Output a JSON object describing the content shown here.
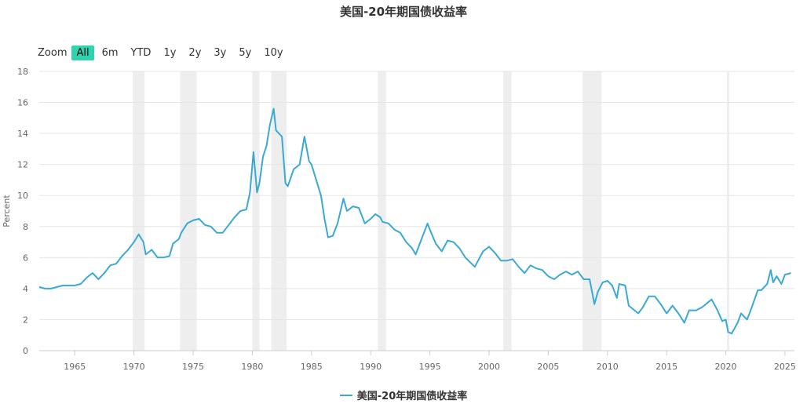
{
  "chart_data": {
    "type": "line",
    "title": "美国-20年期国债收益率",
    "ylabel": "Percent",
    "xlabel": "",
    "ylim": [
      0,
      18
    ],
    "xlim": [
      1962,
      2025.8
    ],
    "y_ticks": [
      "0",
      "2",
      "4",
      "6",
      "8",
      "10",
      "12",
      "14",
      "16",
      "18"
    ],
    "x_ticks": [
      "1965",
      "1970",
      "1975",
      "1980",
      "1985",
      "1990",
      "1995",
      "2000",
      "2005",
      "2010",
      "2015",
      "2020",
      "2025"
    ],
    "grid": true,
    "legend_position": "bottom-center",
    "line_color": "#3aa9d4",
    "recession_color": "#eeeeee",
    "recessions": [
      [
        1969.9,
        1970.9
      ],
      [
        1973.9,
        1975.3
      ],
      [
        1980.0,
        1980.6
      ],
      [
        1981.6,
        1982.9
      ],
      [
        1990.6,
        1991.3
      ],
      [
        2001.2,
        2001.9
      ],
      [
        2007.9,
        2009.5
      ],
      [
        2020.1,
        2020.3
      ]
    ],
    "series": [
      {
        "name": "美国-20年期国债收益率",
        "points": [
          [
            1962.0,
            4.1
          ],
          [
            1962.5,
            4.0
          ],
          [
            1963.0,
            4.0
          ],
          [
            1963.5,
            4.1
          ],
          [
            1964.0,
            4.2
          ],
          [
            1965.0,
            4.2
          ],
          [
            1965.5,
            4.3
          ],
          [
            1966.0,
            4.7
          ],
          [
            1966.5,
            5.0
          ],
          [
            1967.0,
            4.6
          ],
          [
            1967.5,
            5.0
          ],
          [
            1968.0,
            5.5
          ],
          [
            1968.5,
            5.6
          ],
          [
            1969.0,
            6.1
          ],
          [
            1969.5,
            6.5
          ],
          [
            1970.0,
            7.0
          ],
          [
            1970.4,
            7.5
          ],
          [
            1970.8,
            7.0
          ],
          [
            1971.0,
            6.2
          ],
          [
            1971.5,
            6.5
          ],
          [
            1972.0,
            6.0
          ],
          [
            1972.5,
            6.0
          ],
          [
            1973.0,
            6.1
          ],
          [
            1973.3,
            6.9
          ],
          [
            1973.8,
            7.2
          ],
          [
            1974.0,
            7.6
          ],
          [
            1974.5,
            8.2
          ],
          [
            1975.0,
            8.4
          ],
          [
            1975.5,
            8.5
          ],
          [
            1976.0,
            8.1
          ],
          [
            1976.5,
            8.0
          ],
          [
            1977.0,
            7.6
          ],
          [
            1977.5,
            7.6
          ],
          [
            1978.0,
            8.1
          ],
          [
            1978.5,
            8.6
          ],
          [
            1979.0,
            9.0
          ],
          [
            1979.5,
            9.1
          ],
          [
            1979.8,
            10.2
          ],
          [
            1980.1,
            12.8
          ],
          [
            1980.4,
            10.2
          ],
          [
            1980.6,
            10.8
          ],
          [
            1980.9,
            12.5
          ],
          [
            1981.2,
            13.2
          ],
          [
            1981.5,
            14.6
          ],
          [
            1981.8,
            15.6
          ],
          [
            1982.0,
            14.2
          ],
          [
            1982.5,
            13.8
          ],
          [
            1982.8,
            10.8
          ],
          [
            1983.0,
            10.6
          ],
          [
            1983.5,
            11.7
          ],
          [
            1984.0,
            12.0
          ],
          [
            1984.4,
            13.8
          ],
          [
            1984.8,
            12.2
          ],
          [
            1985.0,
            12.0
          ],
          [
            1985.4,
            11.0
          ],
          [
            1985.8,
            10.0
          ],
          [
            1986.1,
            8.5
          ],
          [
            1986.4,
            7.3
          ],
          [
            1986.8,
            7.4
          ],
          [
            1987.2,
            8.2
          ],
          [
            1987.7,
            9.8
          ],
          [
            1988.0,
            9.0
          ],
          [
            1988.5,
            9.3
          ],
          [
            1989.0,
            9.2
          ],
          [
            1989.5,
            8.2
          ],
          [
            1990.0,
            8.5
          ],
          [
            1990.4,
            8.8
          ],
          [
            1990.8,
            8.6
          ],
          [
            1991.0,
            8.3
          ],
          [
            1991.5,
            8.2
          ],
          [
            1992.0,
            7.8
          ],
          [
            1992.5,
            7.6
          ],
          [
            1993.0,
            7.0
          ],
          [
            1993.5,
            6.6
          ],
          [
            1993.8,
            6.2
          ],
          [
            1994.2,
            7.0
          ],
          [
            1994.8,
            8.2
          ],
          [
            1995.0,
            7.8
          ],
          [
            1995.5,
            6.9
          ],
          [
            1996.0,
            6.4
          ],
          [
            1996.5,
            7.1
          ],
          [
            1997.0,
            7.0
          ],
          [
            1997.5,
            6.6
          ],
          [
            1998.0,
            6.0
          ],
          [
            1998.8,
            5.4
          ],
          [
            1999.0,
            5.7
          ],
          [
            1999.5,
            6.4
          ],
          [
            2000.0,
            6.7
          ],
          [
            2000.5,
            6.3
          ],
          [
            2001.0,
            5.8
          ],
          [
            2001.5,
            5.8
          ],
          [
            2002.0,
            5.9
          ],
          [
            2002.5,
            5.4
          ],
          [
            2003.0,
            5.0
          ],
          [
            2003.5,
            5.5
          ],
          [
            2004.0,
            5.3
          ],
          [
            2004.5,
            5.2
          ],
          [
            2005.0,
            4.8
          ],
          [
            2005.5,
            4.6
          ],
          [
            2006.0,
            4.9
          ],
          [
            2006.5,
            5.1
          ],
          [
            2007.0,
            4.9
          ],
          [
            2007.5,
            5.1
          ],
          [
            2008.0,
            4.6
          ],
          [
            2008.5,
            4.6
          ],
          [
            2008.9,
            3.0
          ],
          [
            2009.2,
            3.8
          ],
          [
            2009.6,
            4.4
          ],
          [
            2010.0,
            4.5
          ],
          [
            2010.4,
            4.2
          ],
          [
            2010.8,
            3.4
          ],
          [
            2011.0,
            4.3
          ],
          [
            2011.5,
            4.2
          ],
          [
            2011.8,
            2.9
          ],
          [
            2012.3,
            2.6
          ],
          [
            2012.6,
            2.4
          ],
          [
            2013.0,
            2.8
          ],
          [
            2013.5,
            3.5
          ],
          [
            2014.0,
            3.5
          ],
          [
            2014.5,
            3.0
          ],
          [
            2015.0,
            2.4
          ],
          [
            2015.5,
            2.9
          ],
          [
            2016.0,
            2.4
          ],
          [
            2016.5,
            1.8
          ],
          [
            2016.9,
            2.6
          ],
          [
            2017.5,
            2.6
          ],
          [
            2018.0,
            2.8
          ],
          [
            2018.8,
            3.3
          ],
          [
            2019.3,
            2.6
          ],
          [
            2019.7,
            1.9
          ],
          [
            2020.0,
            2.0
          ],
          [
            2020.2,
            1.2
          ],
          [
            2020.5,
            1.1
          ],
          [
            2021.0,
            1.8
          ],
          [
            2021.3,
            2.4
          ],
          [
            2021.8,
            2.0
          ],
          [
            2022.2,
            2.8
          ],
          [
            2022.7,
            3.9
          ],
          [
            2023.0,
            3.9
          ],
          [
            2023.5,
            4.3
          ],
          [
            2023.8,
            5.2
          ],
          [
            2024.0,
            4.4
          ],
          [
            2024.3,
            4.8
          ],
          [
            2024.7,
            4.3
          ],
          [
            2025.0,
            4.9
          ],
          [
            2025.5,
            5.0
          ]
        ]
      }
    ]
  },
  "range_selector": {
    "zoom_label": "Zoom",
    "buttons": [
      "All",
      "6m",
      "YTD",
      "1y",
      "2y",
      "3y",
      "5y",
      "10y"
    ],
    "active": "All"
  }
}
